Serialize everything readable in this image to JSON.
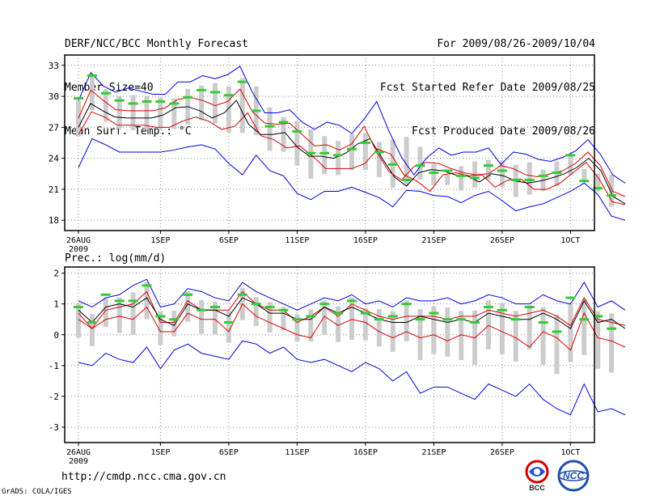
{
  "header": {
    "title": "DERF/NCC/BCC Monthly Forecast",
    "member_size": "Member Size=40",
    "variable": "Mean Surf. Temp.: °C",
    "period": "For 2009/08/26-2009/10/04",
    "start_date": "Fcst Started Refer Date 2009/08/25",
    "produced_date": "Fcst Produced Date 2009/08/26"
  },
  "footer": {
    "url": "http://cmdp.ncc.cma.gov.cn",
    "credit": "GrADS: COLA/IGES",
    "logo_bcc_text": "BCC",
    "logo_ncc_text": "NCC"
  },
  "colors": {
    "ensemble_mean": "#000000",
    "spread_band": "#dd0000",
    "extreme_envelope": "#0000dd",
    "member_range_bar": "#cccccc",
    "observed_marker": "#33cc33",
    "grid": "#888888"
  },
  "chart_data": [
    {
      "type": "line",
      "title": "Mean Surf. Temp.: °C",
      "ylabel": "°C",
      "ylim": [
        17,
        34
      ],
      "yticks": [
        18,
        21,
        24,
        27,
        30,
        33
      ],
      "x_days": 40,
      "xtick_days": [
        0,
        6,
        11,
        16,
        21,
        26,
        31,
        36
      ],
      "xtick_labels": [
        "26AUG",
        "1SEP",
        "6SEP",
        "11SEP",
        "16SEP",
        "21SEP",
        "26SEP",
        "1OCT"
      ],
      "xtick_year": "2009",
      "series": [
        {
          "name": "max",
          "values": [
            23.1,
            25.9,
            25.3,
            24.6,
            24.6,
            24.6,
            24.6,
            24.8,
            25.1,
            25.3,
            24.9,
            23.5,
            22.4,
            24.3,
            22.8,
            22.3,
            20.6,
            20.0,
            20.8,
            20.8,
            21.2,
            20.7,
            20.2,
            19.3,
            20.9,
            20.8,
            20.4,
            20.3,
            19.7,
            20.4,
            20.8,
            19.9,
            18.9,
            19.3,
            19.6,
            20.2,
            20.8,
            21.6,
            20.5,
            18.4,
            18.0
          ]
        },
        {
          "name": "lower",
          "values": [
            26.3,
            28.5,
            28.0,
            27.2,
            27.2,
            27.2,
            27.0,
            27.0,
            27.6,
            28.0,
            27.6,
            26.8,
            27.1,
            28.4,
            26.2,
            25.8,
            25.0,
            25.2,
            24.2,
            23.0,
            23.0,
            23.0,
            23.5,
            24.9,
            24.4,
            22.4,
            21.8,
            20.8,
            22.4,
            22.6,
            22.3,
            22.4,
            21.2,
            21.9,
            22.0,
            21.0,
            21.0,
            21.6,
            22.6,
            23.6,
            22.0,
            19.8,
            19.5
          ]
        },
        {
          "name": "mean",
          "values": [
            27.0,
            29.3,
            28.6,
            28.0,
            27.9,
            27.9,
            27.9,
            28.2,
            28.9,
            29.0,
            28.6,
            27.9,
            28.4,
            29.6,
            27.3,
            26.3,
            26.3,
            26.5,
            25.1,
            24.2,
            24.2,
            24.0,
            24.5,
            25.4,
            25.9,
            24.0,
            22.2,
            21.3,
            22.6,
            22.9,
            22.8,
            22.4,
            22.3,
            21.7,
            22.5,
            22.3,
            21.8,
            21.6,
            21.8,
            22.1,
            22.5,
            23.1,
            24.0,
            22.8,
            20.3,
            19.6
          ]
        },
        {
          "name": "upper",
          "values": [
            27.9,
            30.6,
            29.6,
            28.7,
            28.6,
            28.6,
            28.6,
            28.9,
            29.7,
            29.9,
            29.6,
            29.1,
            29.5,
            30.7,
            28.5,
            27.4,
            27.3,
            27.4,
            26.3,
            25.2,
            25.3,
            24.8,
            25.4,
            27.1,
            24.6,
            22.7,
            21.9,
            23.2,
            23.6,
            23.5,
            23.0,
            22.6,
            22.4,
            22.5,
            23.3,
            23.0,
            22.4,
            22.2,
            22.5,
            22.8,
            23.5,
            24.6,
            23.3,
            20.8,
            20.3
          ]
        },
        {
          "name": "min",
          "values": [
            29.6,
            32.3,
            31.0,
            30.4,
            30.8,
            30.5,
            30.2,
            30.2,
            31.4,
            31.4,
            32.0,
            31.7,
            32.1,
            32.9,
            30.4,
            28.4,
            28.4,
            28.7,
            27.5,
            26.8,
            27.5,
            27.2,
            26.4,
            27.8,
            29.5,
            26.6,
            24.1,
            22.4,
            24.0,
            25.0,
            24.3,
            24.6,
            24.6,
            25.0,
            23.4,
            24.6,
            24.4,
            23.9,
            23.7,
            24.1,
            24.7,
            25.8,
            24.4,
            22.4,
            21.6
          ]
        },
        {
          "name": "observed",
          "values": [
            29.8,
            32.0,
            30.3,
            29.6,
            29.3,
            29.5,
            29.5,
            29.3,
            29.9,
            30.6,
            30.4,
            30.1,
            31.4,
            28.6,
            27.1,
            27.5,
            26.6,
            24.5,
            24.5,
            24.3,
            24.9,
            25.5,
            24.6,
            23.4,
            21.9,
            23.3,
            22.6,
            22.8,
            22.3,
            22.1,
            23.3,
            22.8,
            21.9,
            21.9,
            22.3,
            22.6,
            24.3,
            21.8,
            21.1,
            20.4
          ]
        }
      ]
    },
    {
      "type": "line",
      "title": "Prec.: log(mm/d)",
      "ylabel": "log(mm/d)",
      "ylim": [
        -3.5,
        2.2
      ],
      "yticks": [
        -3,
        -2,
        -1,
        0,
        1,
        2
      ],
      "x_days": 40,
      "xtick_days": [
        0,
        6,
        11,
        16,
        21,
        26,
        31,
        36
      ],
      "xtick_labels": [
        "26AUG",
        "1SEP",
        "6SEP",
        "11SEP",
        "16SEP",
        "21SEP",
        "26SEP",
        "1OCT"
      ],
      "xtick_year": "2009",
      "series": [
        {
          "name": "max",
          "values": [
            1.1,
            0.9,
            1.2,
            1.3,
            1.6,
            1.8,
            0.9,
            1.0,
            1.5,
            1.4,
            1.2,
            1.1,
            1.7,
            1.4,
            1.2,
            1.0,
            0.8,
            1.0,
            1.2,
            1.1,
            1.3,
            1.0,
            1.1,
            0.9,
            1.2,
            1.1,
            1.1,
            1.2,
            1.0,
            1.1,
            1.3,
            1.2,
            1.0,
            1.0,
            1.3,
            1.1,
            1.0,
            1.7,
            0.9,
            1.1,
            0.8
          ]
        },
        {
          "name": "upper",
          "values": [
            0.7,
            0.2,
            0.8,
            0.9,
            1.0,
            1.4,
            0.4,
            0.4,
            1.1,
            0.8,
            0.8,
            0.8,
            1.4,
            1.0,
            0.8,
            0.8,
            0.4,
            0.6,
            0.9,
            0.6,
            1.0,
            0.8,
            0.6,
            0.5,
            0.6,
            0.6,
            0.6,
            0.5,
            0.6,
            0.6,
            0.8,
            0.7,
            0.6,
            0.7,
            0.8,
            0.6,
            0.3,
            1.2,
            0.5,
            0.4,
            0.3
          ]
        },
        {
          "name": "mean",
          "values": [
            0.8,
            0.4,
            0.9,
            1.0,
            0.9,
            1.2,
            0.5,
            0.3,
            1.0,
            0.8,
            0.8,
            0.6,
            1.2,
            1.0,
            0.7,
            0.7,
            0.5,
            0.5,
            0.9,
            0.7,
            0.9,
            0.7,
            0.5,
            0.4,
            0.4,
            0.6,
            0.5,
            0.4,
            0.5,
            0.4,
            0.7,
            0.6,
            0.5,
            0.5,
            0.7,
            0.5,
            0.2,
            1.1,
            0.4,
            0.5,
            0.2
          ]
        },
        {
          "name": "lower",
          "values": [
            0.5,
            0.2,
            0.5,
            0.6,
            0.5,
            0.9,
            0.1,
            0.1,
            0.7,
            0.5,
            0.5,
            0.1,
            1.0,
            0.6,
            0.4,
            0.2,
            0.0,
            -0.1,
            0.6,
            0.3,
            0.5,
            0.4,
            0.1,
            -0.1,
            0.1,
            -0.1,
            0.0,
            -0.2,
            0.0,
            -0.1,
            0.3,
            0.1,
            -0.1,
            -0.4,
            0.1,
            -0.1,
            -0.5,
            0.7,
            -0.1,
            -0.2,
            -0.4
          ]
        },
        {
          "name": "min",
          "values": [
            -0.9,
            -1.0,
            -0.6,
            -0.8,
            -0.9,
            -0.4,
            -1.1,
            -0.5,
            -0.3,
            -0.6,
            -0.7,
            -0.8,
            -0.2,
            -0.3,
            -0.6,
            -0.4,
            -0.8,
            -0.9,
            -0.8,
            -1.0,
            -1.2,
            -0.9,
            -1.1,
            -1.5,
            -1.2,
            -1.9,
            -1.7,
            -1.7,
            -1.9,
            -2.1,
            -1.6,
            -1.8,
            -2.0,
            -1.6,
            -2.1,
            -2.4,
            -2.6,
            -1.6,
            -2.5,
            -2.4,
            -2.6
          ]
        },
        {
          "name": "observed",
          "values": [
            0.9,
            0.4,
            1.3,
            1.1,
            1.1,
            1.6,
            0.6,
            0.5,
            1.3,
            0.8,
            0.9,
            0.4,
            1.3,
            1.0,
            0.9,
            0.8,
            0.5,
            0.6,
            1.0,
            0.7,
            1.1,
            0.7,
            0.5,
            0.6,
            1.0,
            0.5,
            0.7,
            0.5,
            0.5,
            0.4,
            0.9,
            0.8,
            0.5,
            0.9,
            0.4,
            0.1,
            1.2,
            0.5,
            0.6,
            0.2
          ]
        }
      ]
    }
  ]
}
